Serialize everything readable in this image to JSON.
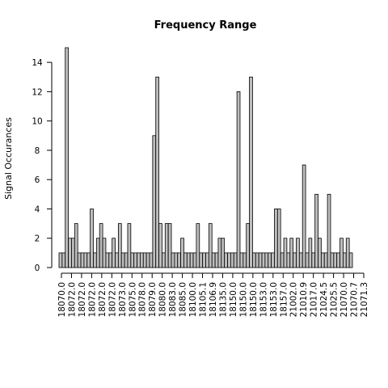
{
  "chart_data": {
    "type": "bar",
    "title": "Frequency Range",
    "xlabel": "",
    "ylabel": "Signal Occurances",
    "ylim": [
      0,
      15
    ],
    "yticks": [
      0,
      2,
      4,
      6,
      8,
      10,
      12,
      14
    ],
    "x_tick_labels": [
      "18070.0",
      "18072.0",
      "18072.0",
      "18072.0",
      "18072.0",
      "18072.0",
      "18073.0",
      "18075.0",
      "18078.0",
      "18079.0",
      "18080.0",
      "18083.0",
      "18085.0",
      "18100.0",
      "18105.1",
      "18106.9",
      "18135.0",
      "18150.0",
      "18150.0",
      "18150.0",
      "18153.0",
      "18153.0",
      "18157.0",
      "21002.0",
      "21010.9",
      "21017.0",
      "21024.5",
      "21025.5",
      "21070.0",
      "21070.7",
      "21071.3"
    ],
    "values": [
      1,
      1,
      15,
      2,
      2,
      3,
      1,
      1,
      1,
      1,
      4,
      1,
      2,
      3,
      2,
      1,
      1,
      2,
      1,
      3,
      1,
      1,
      3,
      1,
      1,
      1,
      1,
      1,
      1,
      1,
      9,
      13,
      3,
      1,
      3,
      3,
      1,
      1,
      1,
      2,
      1,
      1,
      1,
      1,
      3,
      1,
      1,
      1,
      3,
      1,
      1,
      2,
      2,
      1,
      1,
      1,
      1,
      12,
      1,
      1,
      3,
      13,
      1,
      1,
      1,
      1,
      1,
      1,
      1,
      4,
      4,
      1,
      2,
      1,
      2,
      1,
      2,
      1,
      7,
      1,
      2,
      1,
      5,
      2,
      1,
      1,
      5,
      1,
      1,
      1,
      2,
      1,
      2,
      1
    ],
    "grid": false,
    "legend": "none"
  }
}
